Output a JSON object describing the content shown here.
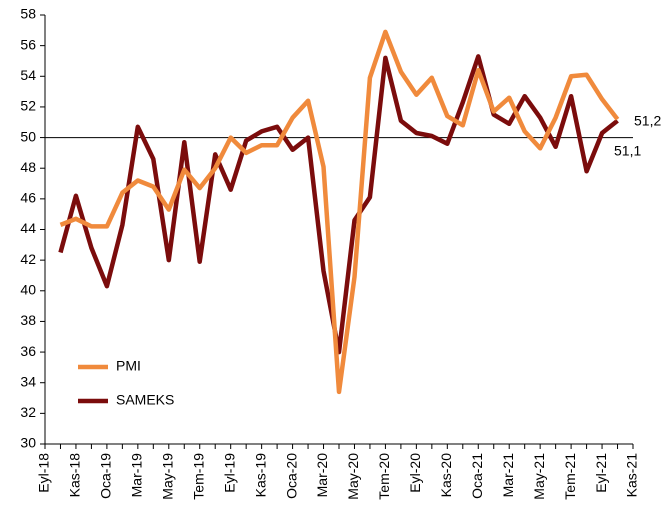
{
  "chart_data": {
    "type": "line",
    "categories": [
      "Eyl-18",
      null,
      "Kas-18",
      null,
      "Oca-19",
      null,
      "Mar-19",
      null,
      "May-19",
      null,
      "Tem-19",
      null,
      "Eyl-19",
      null,
      "Kas-19",
      null,
      "Oca-20",
      null,
      "Mar-20",
      null,
      "May-20",
      null,
      "Tem-20",
      null,
      "Eyl-20",
      null,
      "Kas-20",
      null,
      "Oca-21",
      null,
      "Mar-21",
      null,
      "May-21",
      null,
      "Tem-21",
      null,
      "Eyl-21",
      null,
      "Kas-21"
    ],
    "series": [
      {
        "name": "PMI",
        "color": "#f08a3c",
        "values": [
          null,
          44.3,
          44.7,
          44.2,
          44.2,
          46.4,
          47.2,
          46.8,
          45.3,
          47.9,
          46.7,
          48.0,
          50.0,
          49.0,
          49.5,
          49.5,
          51.3,
          52.4,
          48.1,
          33.4,
          40.9,
          53.9,
          56.9,
          54.3,
          52.8,
          53.9,
          51.4,
          50.8,
          54.4,
          51.7,
          52.6,
          50.4,
          49.3,
          51.3,
          54.0,
          54.1,
          52.5,
          51.2,
          null
        ]
      },
      {
        "name": "SAMEKS",
        "color": "#7b0c0c",
        "values": [
          null,
          42.5,
          46.2,
          42.8,
          40.3,
          44.3,
          50.7,
          48.6,
          42.0,
          49.7,
          41.9,
          48.9,
          46.6,
          49.8,
          50.4,
          50.7,
          49.2,
          50.0,
          41.3,
          36.0,
          44.6,
          46.1,
          55.2,
          51.1,
          50.3,
          50.1,
          49.6,
          52.3,
          55.3,
          51.5,
          50.9,
          52.7,
          51.3,
          49.4,
          52.7,
          47.8,
          50.3,
          51.1,
          null
        ]
      }
    ],
    "annotations": [
      "51,2",
      "51,1"
    ],
    "reference_line": 50,
    "ylim": [
      30,
      58
    ],
    "yticks": [
      30,
      32,
      34,
      36,
      38,
      40,
      42,
      44,
      46,
      48,
      50,
      52,
      54,
      56,
      58
    ],
    "legend": "lower left"
  }
}
